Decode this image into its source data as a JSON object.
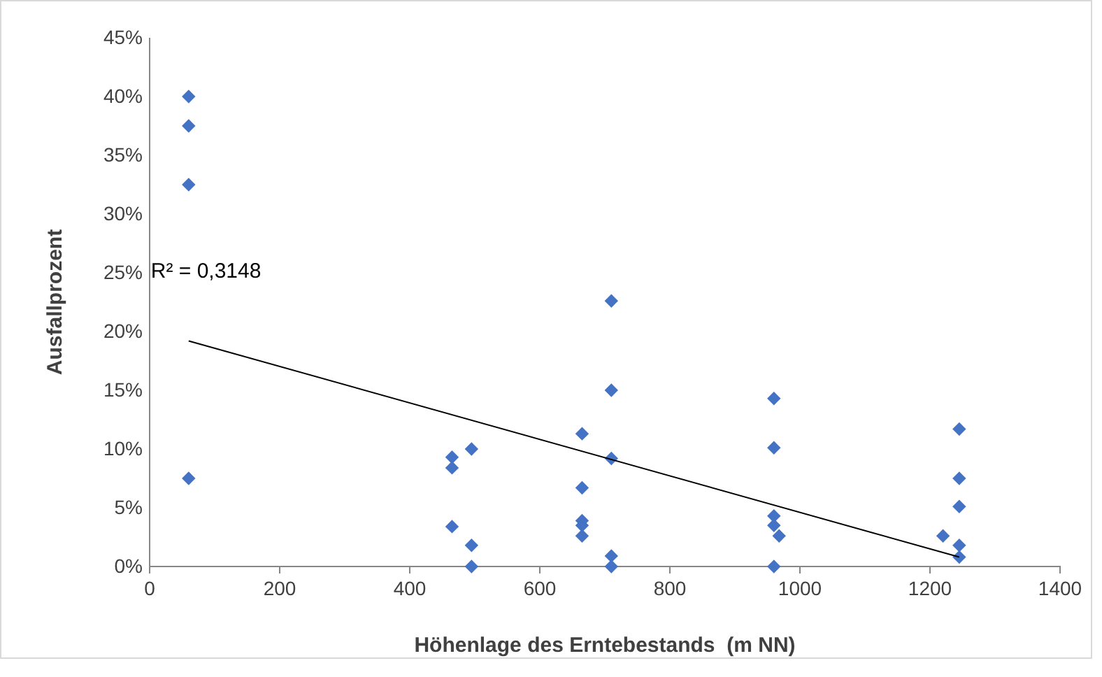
{
  "chart_data": {
    "type": "scatter",
    "xlabel": "Höhenlage des Erntebestands  (m NN)",
    "ylabel": "Ausfallprozent",
    "annotations": [
      "R² = 0,3148"
    ],
    "xlim": [
      0,
      1400
    ],
    "xticks": [
      0,
      200,
      400,
      600,
      800,
      1000,
      1200,
      1400
    ],
    "ylim": [
      0,
      45
    ],
    "yticks": [
      {
        "value": 0,
        "label": "0%"
      },
      {
        "value": 5,
        "label": "5%"
      },
      {
        "value": 10,
        "label": "10%"
      },
      {
        "value": 15,
        "label": "15%"
      },
      {
        "value": 20,
        "label": "20%"
      },
      {
        "value": 25,
        "label": "25%"
      },
      {
        "value": 30,
        "label": "30%"
      },
      {
        "value": 35,
        "label": "35%"
      },
      {
        "value": 40,
        "label": "40%"
      },
      {
        "value": 45,
        "label": "45%"
      }
    ],
    "grid": false,
    "series": [
      {
        "marker": "diamond",
        "color": "#4472c4",
        "x": [
          60,
          60,
          60,
          60,
          465,
          465,
          465,
          495,
          495,
          495,
          665,
          665,
          665,
          665,
          665,
          710,
          710,
          710,
          710,
          710,
          960,
          960,
          960,
          960,
          960,
          968,
          1220,
          1245,
          1245,
          1245,
          1245,
          1245
        ],
        "values": [
          40,
          37.5,
          32.5,
          7.5,
          9.3,
          8.4,
          3.4,
          10,
          1.8,
          0,
          11.3,
          6.7,
          3.9,
          3.5,
          2.6,
          22.6,
          15,
          9.2,
          0.9,
          0,
          14.3,
          10.1,
          4.3,
          3.5,
          0,
          2.6,
          2.6,
          11.7,
          7.5,
          5.1,
          1.8,
          0.8
        ]
      },
      {
        "type": "line",
        "marker": "none",
        "color": "#000000",
        "x": [
          60,
          1245
        ],
        "values": [
          19.2,
          0.8
        ]
      }
    ]
  }
}
